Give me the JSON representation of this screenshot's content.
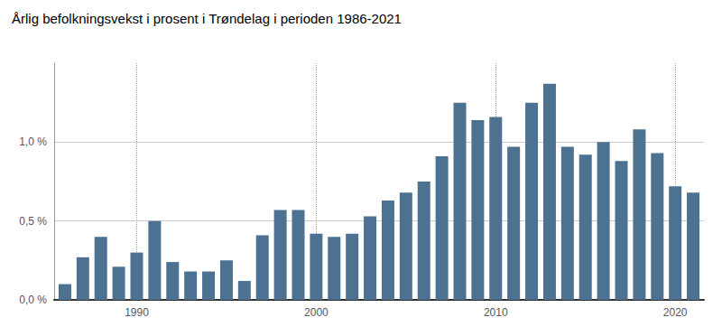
{
  "chart_data": {
    "type": "bar",
    "title": "Årlig befolkningsvekst i prosent i Trøndelag i perioden 1986-2021",
    "x": [
      1986,
      1987,
      1988,
      1989,
      1990,
      1991,
      1992,
      1993,
      1994,
      1995,
      1996,
      1997,
      1998,
      1999,
      2000,
      2001,
      2002,
      2003,
      2004,
      2005,
      2006,
      2007,
      2008,
      2009,
      2010,
      2011,
      2012,
      2013,
      2014,
      2015,
      2016,
      2017,
      2018,
      2019,
      2020,
      2021
    ],
    "values": [
      0.1,
      0.27,
      0.4,
      0.21,
      0.3,
      0.5,
      0.24,
      0.18,
      0.18,
      0.25,
      0.12,
      0.41,
      0.57,
      0.57,
      0.42,
      0.4,
      0.42,
      0.53,
      0.63,
      0.68,
      0.75,
      0.91,
      1.25,
      1.14,
      1.16,
      0.97,
      1.25,
      1.37,
      0.97,
      0.92,
      1.0,
      0.88,
      1.08,
      0.93,
      0.72,
      0.68
    ],
    "color": "#4d7291",
    "xlim": [
      1985.4,
      2021.6
    ],
    "xticks": [
      1990,
      2000,
      2010,
      2020
    ],
    "ylim": [
      0,
      1.5
    ],
    "yticks": [
      {
        "value": 0.0,
        "label": "0,0 %"
      },
      {
        "value": 0.5,
        "label": "0,5 %"
      },
      {
        "value": 1.0,
        "label": "1,0 %"
      }
    ],
    "grid": true
  }
}
